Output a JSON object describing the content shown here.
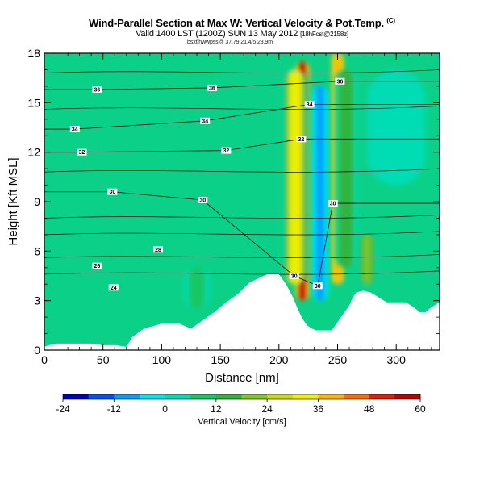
{
  "chart_data": {
    "type": "heatmap",
    "title": "Wind-Parallel Section at Max W: Vertical Velocity & Pot.Temp.",
    "title_unit": "(C)",
    "subtitle": "Valid 1400 LST (1200Z) SUN 13 May 2012",
    "subtitle_forecast": "[18hFcst@2158z]",
    "note": "bsxf/hwwpss@ 37.79,21.4/5.23.9m",
    "xlabel": "Distance [nm]",
    "ylabel": "Height [Kft MSL]",
    "xlim": [
      0,
      337
    ],
    "ylim": [
      0,
      18
    ],
    "x_ticks": [
      0,
      50,
      100,
      150,
      200,
      250,
      300
    ],
    "y_ticks": [
      0,
      3,
      6,
      9,
      12,
      15,
      18
    ],
    "colorbar": {
      "label": "Vertical Velocity [cm/s]",
      "range": [
        -24,
        60
      ],
      "ticks": [
        -24,
        -12,
        0,
        12,
        24,
        36,
        48,
        60
      ],
      "colors": [
        "#0000c8",
        "#0050ff",
        "#00a0ff",
        "#00e6f0",
        "#00dcb4",
        "#14c864",
        "#32b43c",
        "#82c828",
        "#c8dc14",
        "#f0f000",
        "#ffb400",
        "#ff6e00",
        "#e61e00",
        "#be0000"
      ]
    },
    "terrain_profile": {
      "x": [
        0,
        4,
        10,
        20,
        30,
        40,
        50,
        60,
        70,
        75,
        85,
        100,
        115,
        125,
        135,
        145,
        155,
        165,
        175,
        190,
        200,
        206,
        212,
        216,
        220,
        224,
        228,
        232,
        236,
        240,
        245,
        250,
        255,
        260,
        263,
        266,
        272,
        278,
        285,
        292,
        300,
        308,
        315,
        320,
        325,
        330,
        337
      ],
      "y": [
        0.2,
        0.3,
        0.4,
        0.4,
        0.4,
        0.4,
        0.3,
        0.3,
        0.2,
        0.8,
        1.3,
        1.6,
        1.6,
        1.3,
        1.8,
        2.3,
        2.9,
        3.4,
        4.1,
        4.6,
        4.6,
        4.0,
        3.2,
        2.5,
        1.9,
        1.5,
        1.3,
        1.2,
        1.2,
        1.2,
        1.2,
        1.7,
        2.2,
        2.7,
        3.2,
        3.5,
        3.6,
        3.5,
        3.2,
        2.9,
        2.9,
        2.9,
        2.6,
        2.3,
        2.3,
        2.6,
        2.9
      ]
    },
    "vertical_velocity_features": [
      {
        "x_center": 220,
        "x_width": 5,
        "y_low": 3,
        "y_high": 17.5,
        "w_max": 58
      },
      {
        "x_center": 214,
        "x_width": 8,
        "y_low": 4,
        "y_high": 17,
        "w_max": 30
      },
      {
        "x_center": 250,
        "x_width": 5,
        "y_low": 4,
        "y_high": 18,
        "w_max": 40
      },
      {
        "x_center": 257,
        "x_width": 7,
        "y_low": 5,
        "y_high": 17,
        "w_max": 15
      },
      {
        "x_center": 275,
        "x_width": 6,
        "y_low": 4,
        "y_high": 7,
        "w_max": 18
      },
      {
        "x_center": 130,
        "x_width": 8,
        "y_low": 2.5,
        "y_high": 5,
        "w_max": 10
      },
      {
        "x_center": 300,
        "x_width": 18,
        "y_low": 10,
        "y_high": 17,
        "w_max": 4
      },
      {
        "x_center": 235,
        "x_width": 5,
        "y_low": 3,
        "y_high": 16,
        "w_max": -9
      }
    ],
    "potential_temperature_labels": [
      {
        "value": "36",
        "x": 45,
        "y": 15.8
      },
      {
        "value": "36",
        "x": 143,
        "y": 15.9
      },
      {
        "value": "36",
        "x": 252,
        "y": 16.3
      },
      {
        "value": "34",
        "x": 26,
        "y": 13.4
      },
      {
        "value": "34",
        "x": 137,
        "y": 13.9
      },
      {
        "value": "34",
        "x": 226,
        "y": 14.9
      },
      {
        "value": "32",
        "x": 32,
        "y": 12.0
      },
      {
        "value": "32",
        "x": 155,
        "y": 12.1
      },
      {
        "value": "32",
        "x": 219,
        "y": 12.8
      },
      {
        "value": "30",
        "x": 58,
        "y": 9.6
      },
      {
        "value": "30",
        "x": 135,
        "y": 9.1
      },
      {
        "value": "30",
        "x": 246,
        "y": 8.9
      },
      {
        "value": "28",
        "x": 97,
        "y": 6.1
      },
      {
        "value": "26",
        "x": 45,
        "y": 5.1
      },
      {
        "value": "24",
        "x": 59,
        "y": 3.8
      },
      {
        "value": "30",
        "x": 213,
        "y": 4.5
      },
      {
        "value": "30",
        "x": 233,
        "y": 3.9
      }
    ]
  }
}
